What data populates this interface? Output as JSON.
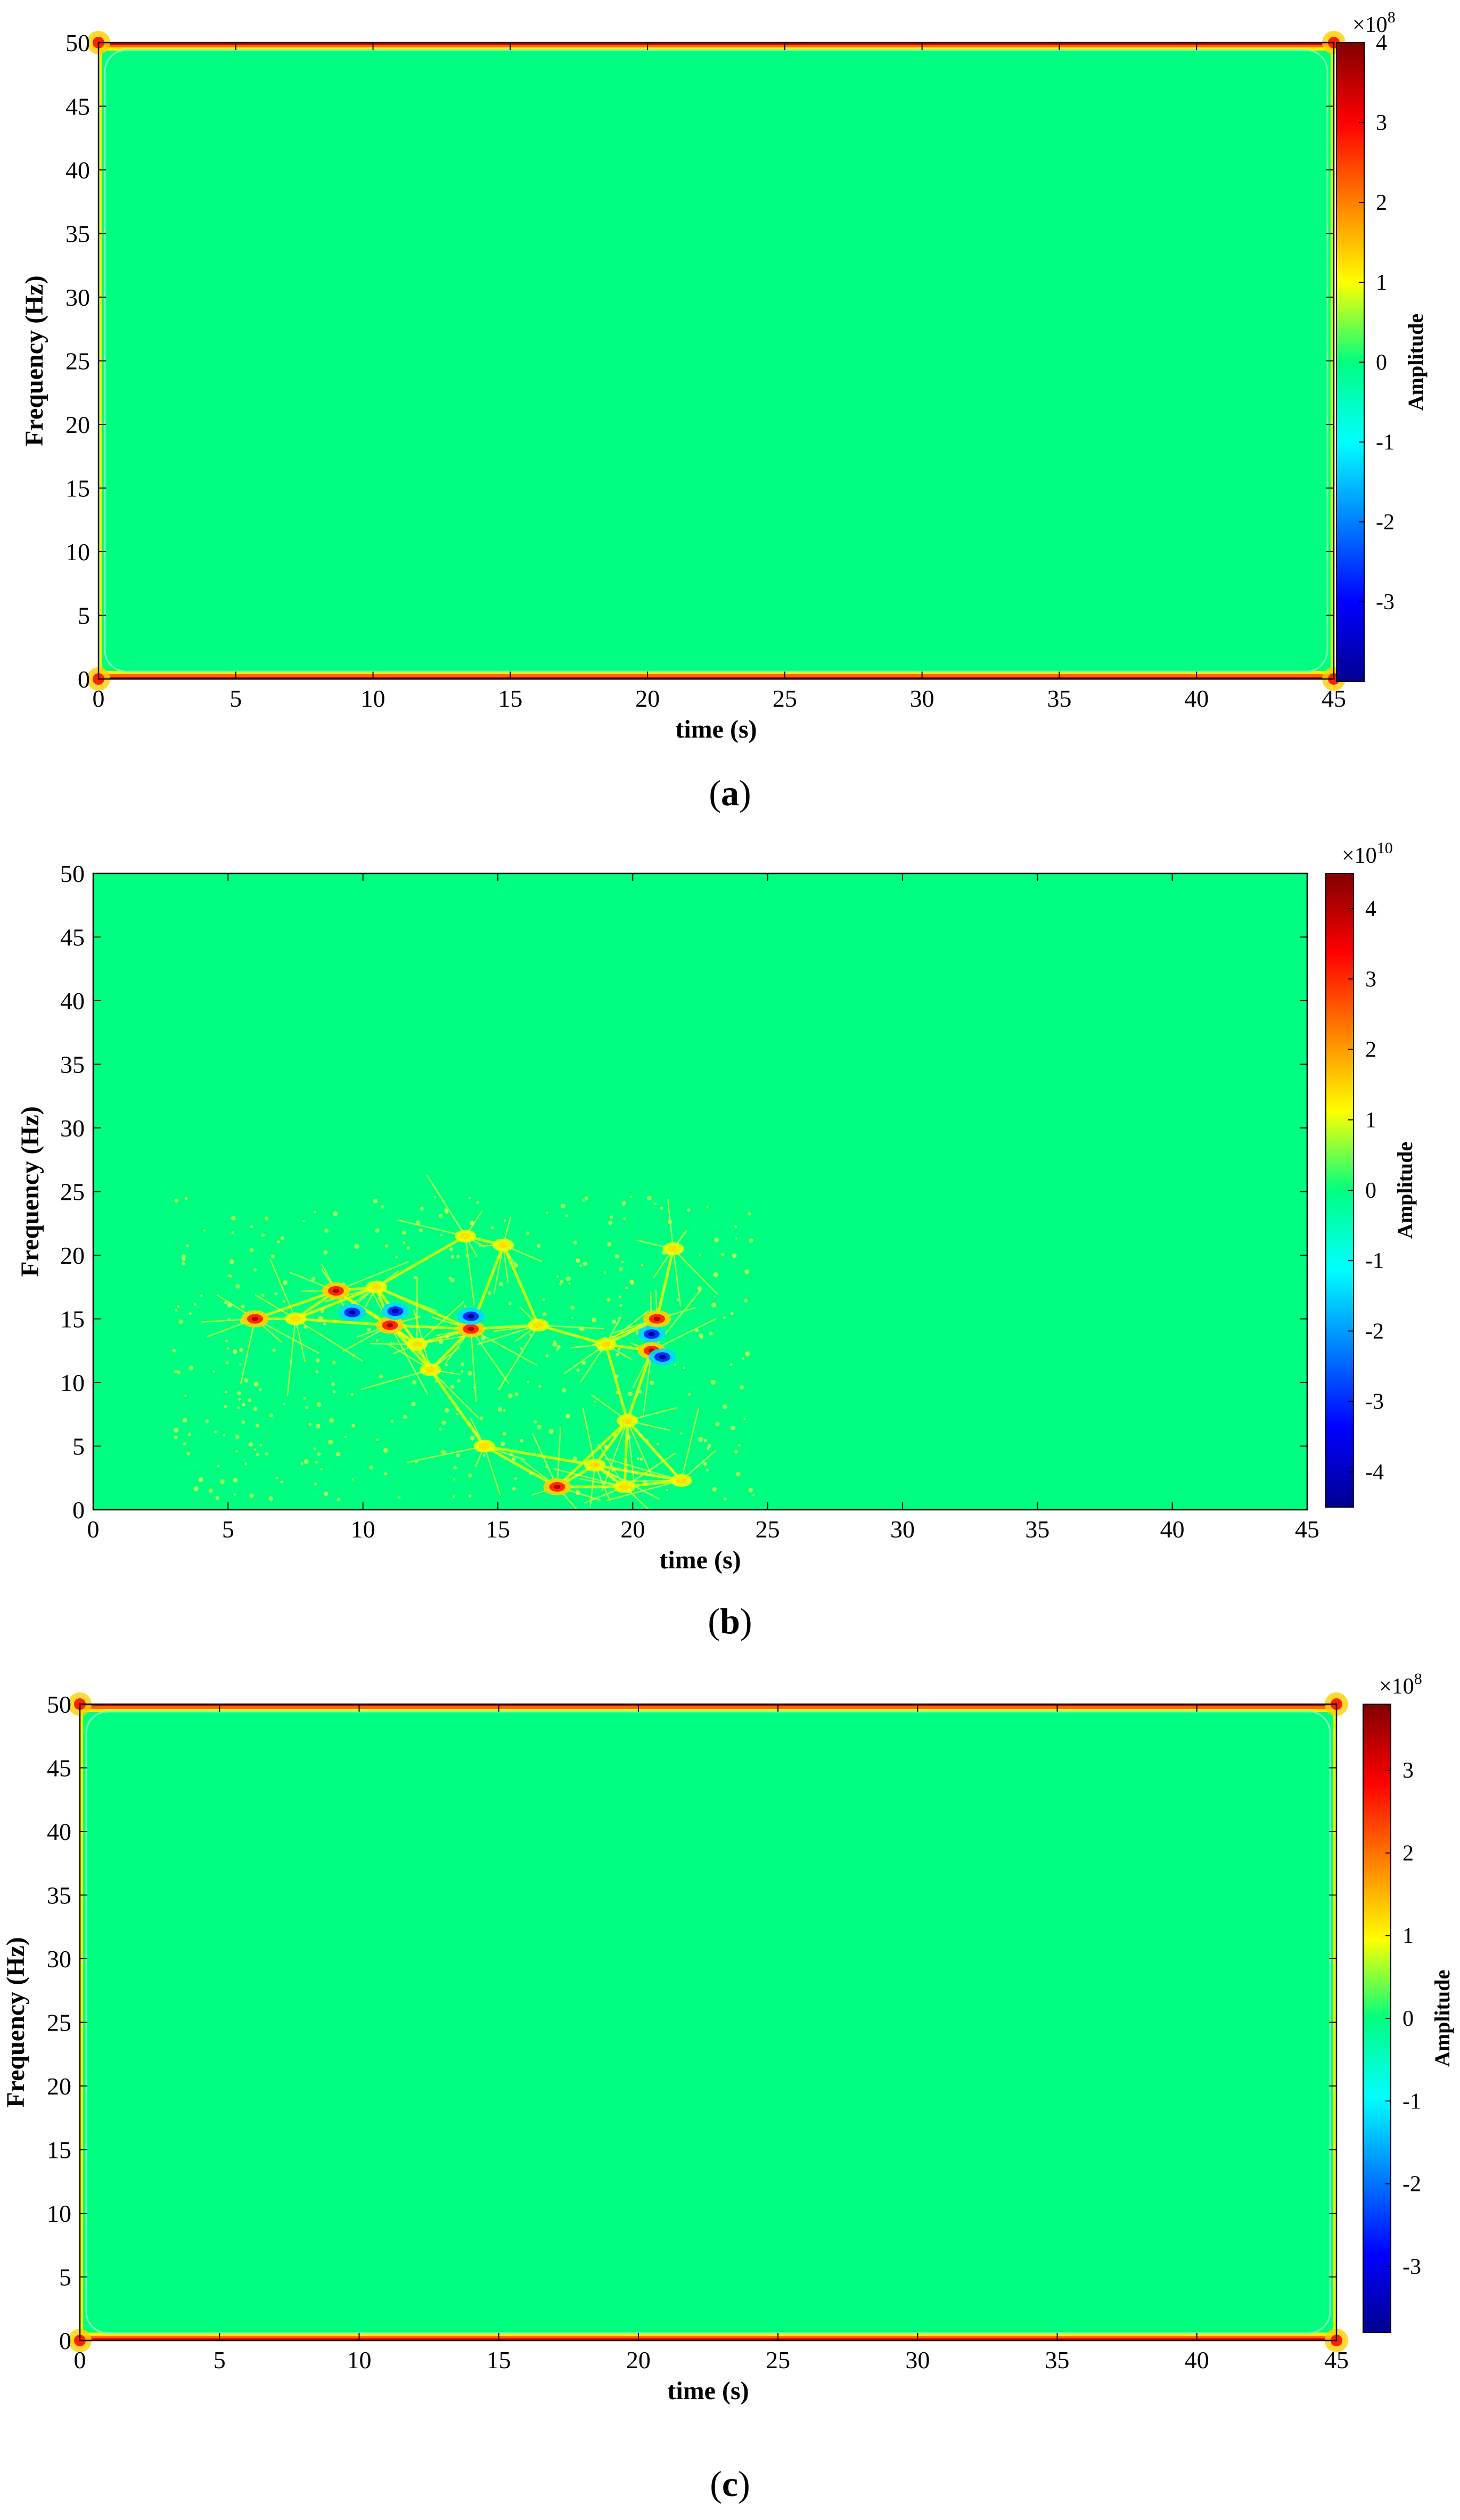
{
  "colors": {
    "background_field": "#00ff80",
    "colormap": "jet"
  },
  "chart_data": [
    {
      "type": "heatmap",
      "panel_label": "a",
      "xlabel": "time (s)",
      "ylabel": "Frequency (Hz)",
      "xlim": [
        0,
        45
      ],
      "ylim": [
        0,
        50
      ],
      "xticks": [
        "0",
        "5",
        "10",
        "15",
        "20",
        "25",
        "30",
        "35",
        "40",
        "45"
      ],
      "yticks": [
        "0",
        "5",
        "10",
        "15",
        "20",
        "25",
        "30",
        "35",
        "40",
        "45",
        "50"
      ],
      "colorbar": {
        "label": "Amplitude",
        "exponent_base": "×10",
        "exponent": "8",
        "range": [
          -4,
          4
        ],
        "ticks": [
          "4",
          "3",
          "2",
          "1",
          "0",
          "-1",
          "-2",
          "-3"
        ],
        "tick_values": [
          4,
          3,
          2,
          1,
          0,
          -1,
          -2,
          -3
        ]
      },
      "content": "edge",
      "hotspots": []
    },
    {
      "type": "heatmap",
      "panel_label": "b",
      "xlabel": "time (s)",
      "ylabel": "Frequency (Hz)",
      "xlim": [
        0,
        45
      ],
      "ylim": [
        0,
        50
      ],
      "xticks": [
        "0",
        "5",
        "10",
        "15",
        "20",
        "25",
        "30",
        "35",
        "40",
        "45"
      ],
      "yticks": [
        "0",
        "5",
        "10",
        "15",
        "20",
        "25",
        "30",
        "35",
        "40",
        "45",
        "50"
      ],
      "colorbar": {
        "label": "Amplitude",
        "exponent_base": "×10",
        "exponent": "10",
        "range": [
          -4.5,
          4.5
        ],
        "ticks": [
          "4",
          "3",
          "2",
          "1",
          "0",
          "-1",
          "-2",
          "-3",
          "-4"
        ],
        "tick_values": [
          4,
          3,
          2,
          1,
          0,
          -1,
          -2,
          -3,
          -4
        ]
      },
      "content": "scatter",
      "hotspots": [
        {
          "t": 6.0,
          "f": 15.0,
          "level": "high"
        },
        {
          "t": 9.0,
          "f": 17.2,
          "level": "high"
        },
        {
          "t": 9.6,
          "f": 15.5,
          "level": "low"
        },
        {
          "t": 11.0,
          "f": 14.5,
          "level": "high"
        },
        {
          "t": 11.2,
          "f": 15.6,
          "level": "low"
        },
        {
          "t": 14.0,
          "f": 14.2,
          "level": "high"
        },
        {
          "t": 14.0,
          "f": 15.2,
          "level": "low"
        },
        {
          "t": 17.2,
          "f": 1.8,
          "level": "high"
        },
        {
          "t": 20.7,
          "f": 13.8,
          "level": "low"
        },
        {
          "t": 20.9,
          "f": 15.0,
          "level": "high"
        },
        {
          "t": 20.7,
          "f": 12.5,
          "level": "high"
        },
        {
          "t": 21.1,
          "f": 12.0,
          "level": "low"
        },
        {
          "t": 7.5,
          "f": 15.0,
          "level": "mid"
        },
        {
          "t": 12.5,
          "f": 11.0,
          "level": "mid"
        },
        {
          "t": 13.8,
          "f": 21.5,
          "level": "mid"
        },
        {
          "t": 15.2,
          "f": 20.8,
          "level": "mid"
        },
        {
          "t": 16.5,
          "f": 14.5,
          "level": "mid"
        },
        {
          "t": 18.6,
          "f": 3.5,
          "level": "mid"
        },
        {
          "t": 19.7,
          "f": 1.8,
          "level": "mid"
        },
        {
          "t": 21.8,
          "f": 2.3,
          "level": "mid"
        },
        {
          "t": 12.0,
          "f": 13.0,
          "level": "mid"
        },
        {
          "t": 14.5,
          "f": 5.0,
          "level": "mid"
        },
        {
          "t": 19.8,
          "f": 7.0,
          "level": "mid"
        },
        {
          "t": 19.0,
          "f": 13.0,
          "level": "mid"
        },
        {
          "t": 10.5,
          "f": 17.5,
          "level": "mid"
        },
        {
          "t": 21.5,
          "f": 20.5,
          "level": "mid"
        }
      ]
    },
    {
      "type": "heatmap",
      "panel_label": "c",
      "xlabel": "time (s)",
      "ylabel": "Frequency (Hz)",
      "xlim": [
        0,
        45
      ],
      "ylim": [
        0,
        50
      ],
      "xticks": [
        "0",
        "5",
        "10",
        "15",
        "20",
        "25",
        "30",
        "35",
        "40",
        "45"
      ],
      "yticks": [
        "0",
        "5",
        "10",
        "15",
        "20",
        "25",
        "30",
        "35",
        "40",
        "45",
        "50"
      ],
      "colorbar": {
        "label": "Amplitude",
        "exponent_base": "×10",
        "exponent": "8",
        "range": [
          -3.8,
          3.8
        ],
        "ticks": [
          "3",
          "2",
          "1",
          "0",
          "-1",
          "-2",
          "-3"
        ],
        "tick_values": [
          3,
          2,
          1,
          0,
          -1,
          -2,
          -3
        ]
      },
      "content": "edge",
      "hotspots": []
    }
  ]
}
